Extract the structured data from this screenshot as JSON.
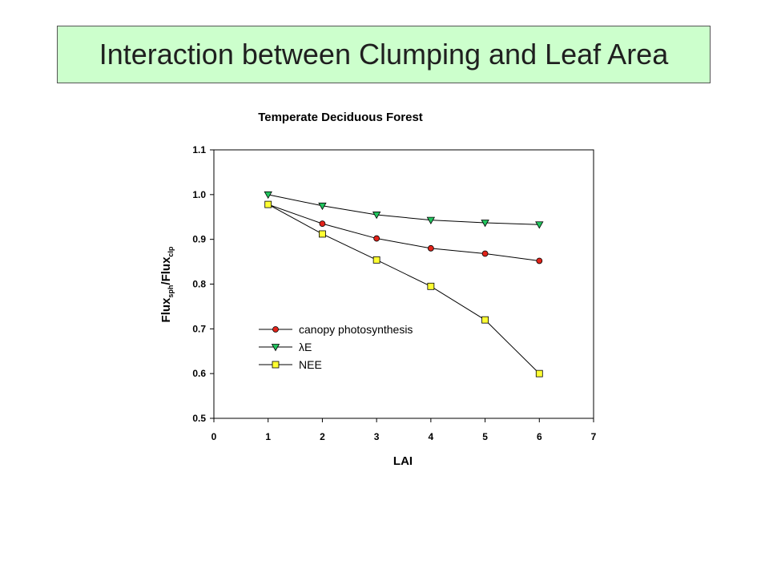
{
  "slide": {
    "title": "Interaction between Clumping and Leaf Area"
  },
  "colors": {
    "title_background": "#ccffcc",
    "canopy_photosynthesis": "#e2231a",
    "lambda_E": "#22c55e",
    "NEE": "#ffff33"
  },
  "chart_data": {
    "type": "line",
    "title": "Temperate Deciduous Forest",
    "xlabel": "LAI",
    "ylabel": {
      "base1": "Flux",
      "sub1": "sph",
      "mid": "/Flux",
      "sub2": "clp"
    },
    "xlim": [
      0,
      7
    ],
    "ylim": [
      0.5,
      1.1
    ],
    "xticks": [
      0,
      1,
      2,
      3,
      4,
      5,
      6,
      7
    ],
    "xtick_labels": [
      "0",
      "1",
      "2",
      "3",
      "4",
      "5",
      "6",
      "7"
    ],
    "yticks": [
      0.5,
      0.6,
      0.7,
      0.8,
      0.9,
      1.0,
      1.1
    ],
    "ytick_labels": [
      "0.5",
      "0.6",
      "0.7",
      "0.8",
      "0.9",
      "1.0",
      "1.1"
    ],
    "x": [
      1,
      2,
      3,
      4,
      5,
      6
    ],
    "series": [
      {
        "name": "canopy photosynthesis",
        "marker": "circle",
        "color": "#e2231a",
        "values": [
          0.978,
          0.935,
          0.902,
          0.88,
          0.868,
          0.852
        ]
      },
      {
        "name": "λE",
        "marker": "triangle-down",
        "color": "#22c55e",
        "values": [
          1.0,
          0.975,
          0.955,
          0.943,
          0.937,
          0.933
        ]
      },
      {
        "name": "NEE",
        "marker": "square",
        "color": "#ffff33",
        "values": [
          0.978,
          0.912,
          0.854,
          0.795,
          0.72,
          0.6
        ]
      }
    ],
    "grid": false,
    "legend_position": "lower-left inside plot"
  }
}
